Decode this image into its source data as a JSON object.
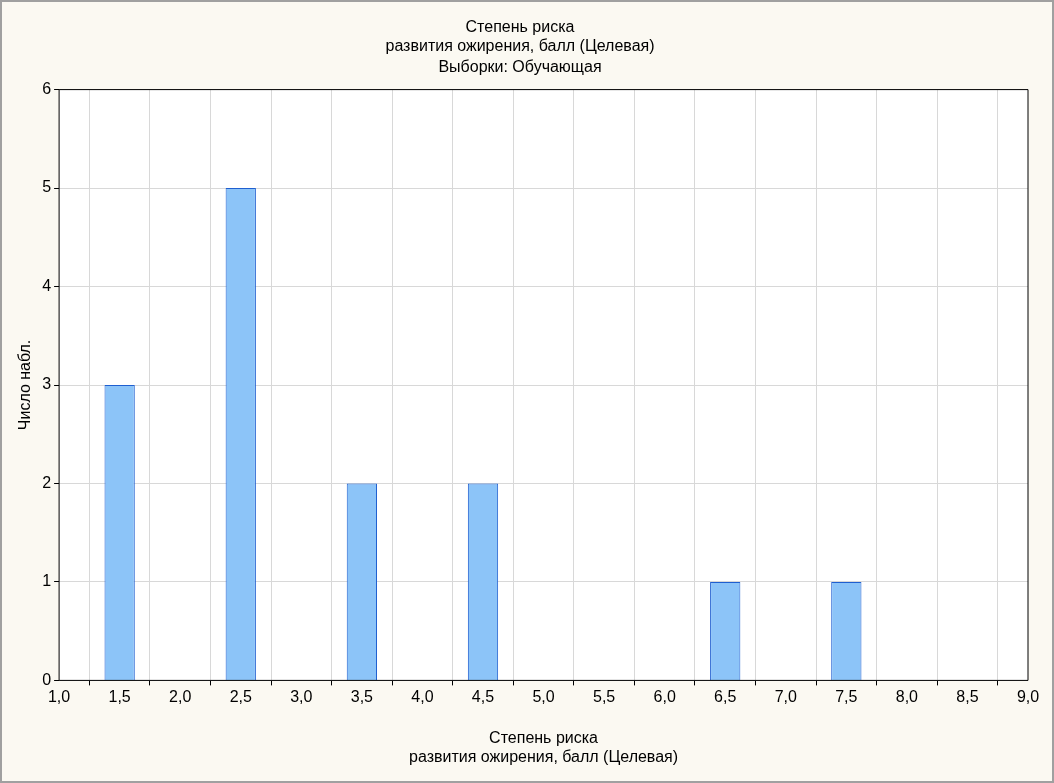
{
  "chart_data": {
    "type": "bar",
    "title": "Степень риска\nразвития ожирения, балл (Целевая)",
    "subtitle": "Выборки: Обучающая",
    "xlabel": "Степень риска\nразвития ожирения, балл (Целевая)",
    "ylabel": "Число набл.",
    "x": [
      1.5,
      2.5,
      3.5,
      4.5,
      6.5,
      7.5
    ],
    "values": [
      3,
      5,
      2,
      2,
      1,
      1
    ],
    "color": "#8cc4f8",
    "xlim": [
      1,
      9
    ],
    "xticks": [
      {
        "value": 1,
        "label": "1,0"
      },
      {
        "value": 1.5,
        "label": "1,5"
      },
      {
        "value": 2,
        "label": "2,0"
      },
      {
        "value": 2.5,
        "label": "2,5"
      },
      {
        "value": 3,
        "label": "3,0"
      },
      {
        "value": 3.5,
        "label": "3,5"
      },
      {
        "value": 4,
        "label": "4,0"
      },
      {
        "value": 4.5,
        "label": "4,5"
      },
      {
        "value": 5,
        "label": "5,0"
      },
      {
        "value": 5.5,
        "label": "5,5"
      },
      {
        "value": 6,
        "label": "6,0"
      },
      {
        "value": 6.5,
        "label": "6,5"
      },
      {
        "value": 7,
        "label": "7,0"
      },
      {
        "value": 7.5,
        "label": "7,5"
      },
      {
        "value": 8,
        "label": "8,0"
      },
      {
        "value": 8.5,
        "label": "8,5"
      },
      {
        "value": 9,
        "label": "9,0"
      }
    ],
    "ylim": [
      0,
      6
    ],
    "yticks": [
      0,
      1,
      2,
      3,
      4,
      5,
      6
    ],
    "grid": true,
    "legend": false
  }
}
